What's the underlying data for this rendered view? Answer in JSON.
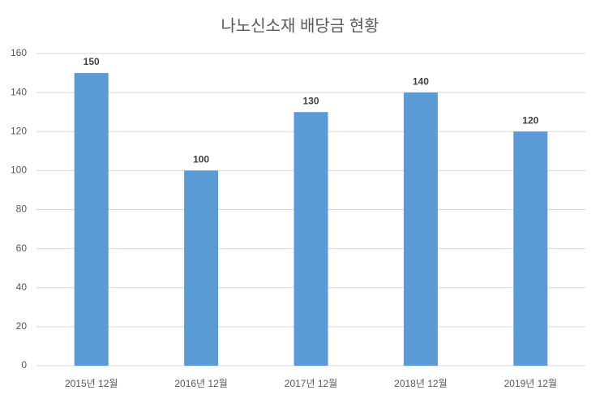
{
  "chart_data": {
    "type": "bar",
    "title": "나노신소재 배당금 현황",
    "categories": [
      "2015년 12월",
      "2016년 12월",
      "2017년 12월",
      "2018년 12월",
      "2019년 12월"
    ],
    "values": [
      150,
      100,
      130,
      140,
      120
    ],
    "color": "#5b9bd5",
    "ylim": [
      0,
      160
    ],
    "yticks": [
      0,
      20,
      40,
      60,
      80,
      100,
      120,
      140,
      160
    ],
    "grid": true
  }
}
